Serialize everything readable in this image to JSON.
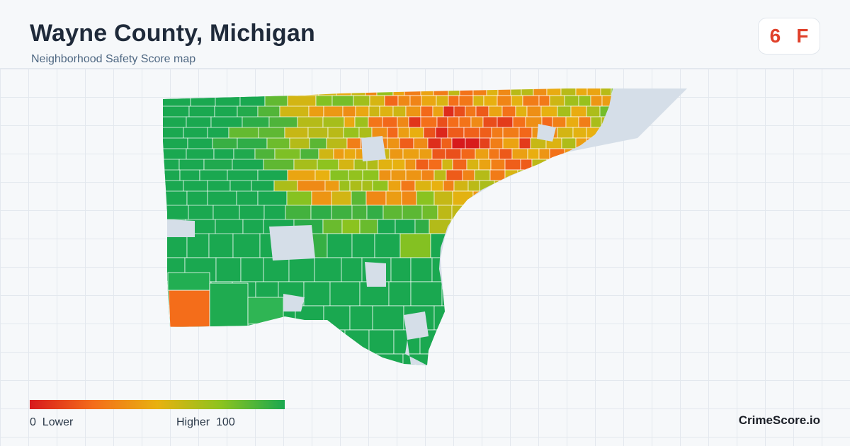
{
  "header": {
    "title": "Wayne County, Michigan",
    "subtitle": "Neighborhood Safety Score map"
  },
  "score": {
    "value": "6",
    "grade": "F",
    "color": "#e0412b"
  },
  "legend": {
    "min": "0",
    "min_label": "Lower",
    "max_label": "Higher",
    "max": "100",
    "colors": [
      "#d7191c",
      "#f46d1a",
      "#e8b110",
      "#8cc31f",
      "#1aa850"
    ]
  },
  "brand": "CrimeScore.io",
  "map": {
    "water_color": "#d5dee8",
    "no_data_color": "#d5dee8"
  }
}
